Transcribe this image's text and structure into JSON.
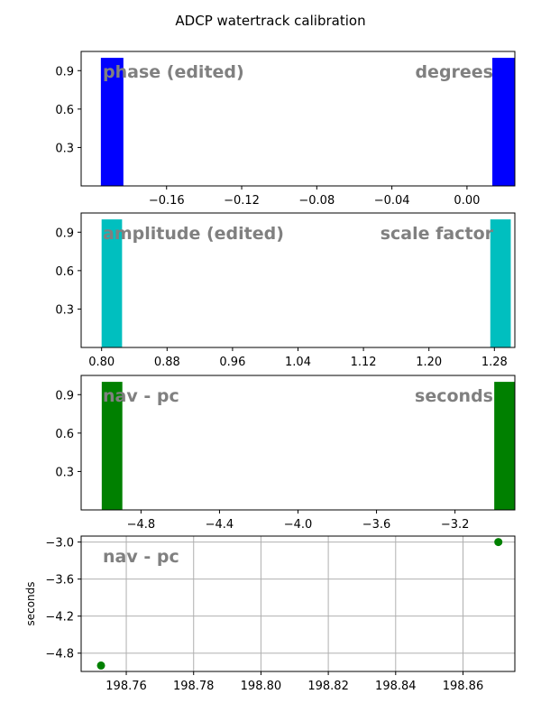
{
  "figure": {
    "title": "ADCP watertrack calibration"
  },
  "colors": {
    "phase": "#0000ff",
    "amplitude": "#00bfbf",
    "nav": "#008000",
    "label": "#808080",
    "grid": "#b0b0b0"
  },
  "chart_data": [
    {
      "type": "bar",
      "label_left": "phase (edited)",
      "label_right": "degrees",
      "xlim": [
        -0.2055,
        0.0255
      ],
      "ylim": [
        0,
        1.05
      ],
      "xticks": [
        -0.16,
        -0.12,
        -0.08,
        -0.04,
        0.0
      ],
      "xticklabels": [
        "−0.16",
        "−0.12",
        "−0.08",
        "−0.04",
        "0.00"
      ],
      "yticks": [
        0.3,
        0.6,
        0.9
      ],
      "yticklabels": [
        "0.3",
        "0.6",
        "0.9"
      ],
      "bars": [
        {
          "x0": -0.195,
          "x1": -0.183,
          "value": 1.0
        },
        {
          "x0": 0.0135,
          "x1": 0.0255,
          "value": 1.0
        }
      ],
      "color": "#0000ff"
    },
    {
      "type": "bar",
      "label_left": "amplitude (edited)",
      "label_right": "scale factor",
      "xlim": [
        0.775,
        1.305
      ],
      "ylim": [
        0,
        1.05
      ],
      "xticks": [
        0.8,
        0.88,
        0.96,
        1.04,
        1.12,
        1.2,
        1.28
      ],
      "xticklabels": [
        "0.80",
        "0.88",
        "0.96",
        "1.04",
        "1.12",
        "1.20",
        "1.28"
      ],
      "yticks": [
        0.3,
        0.6,
        0.9
      ],
      "yticklabels": [
        "0.3",
        "0.6",
        "0.9"
      ],
      "bars": [
        {
          "x0": 0.8,
          "x1": 0.825,
          "value": 1.0
        },
        {
          "x0": 1.275,
          "x1": 1.3,
          "value": 1.0
        }
      ],
      "color": "#00bfbf"
    },
    {
      "type": "bar",
      "label_left": "nav - pc",
      "label_right": "seconds",
      "xlim": [
        -5.105,
        -2.895
      ],
      "ylim": [
        0,
        1.05
      ],
      "xticks": [
        -4.8,
        -4.4,
        -4.0,
        -3.6,
        -3.2
      ],
      "xticklabels": [
        "−4.8",
        "−4.4",
        "−4.0",
        "−3.6",
        "−3.2"
      ],
      "yticks": [
        0.3,
        0.6,
        0.9
      ],
      "yticklabels": [
        "0.3",
        "0.6",
        "0.9"
      ],
      "bars": [
        {
          "x0": -5.0,
          "x1": -4.895,
          "value": 1.0
        },
        {
          "x0": -3.0,
          "x1": -2.895,
          "value": 1.0
        }
      ],
      "color": "#008000"
    },
    {
      "type": "scatter",
      "label_left": "nav - pc",
      "ylabel": "seconds",
      "grid": true,
      "xlim": [
        198.7466,
        198.8754
      ],
      "ylim": [
        -5.0965,
        -2.9035
      ],
      "xticks": [
        198.76,
        198.78,
        198.8,
        198.82,
        198.84,
        198.86
      ],
      "xticklabels": [
        "198.76",
        "198.78",
        "198.80",
        "198.82",
        "198.84",
        "198.86"
      ],
      "yticks": [
        -4.8,
        -4.2,
        -3.6,
        -3.0
      ],
      "yticklabels": [
        "−4.8",
        "−4.2",
        "−3.6",
        "−3.0"
      ],
      "points": [
        {
          "x": 198.7525,
          "y": -5.0
        },
        {
          "x": 198.8705,
          "y": -3.0
        }
      ],
      "color": "#008000"
    }
  ]
}
